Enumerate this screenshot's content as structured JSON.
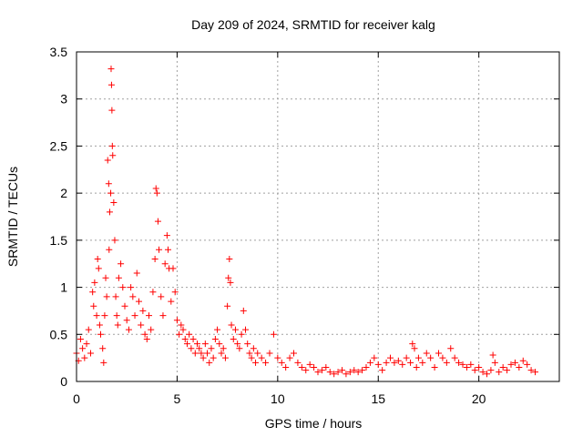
{
  "chart_data": {
    "type": "scatter",
    "title": "Day 209 of 2024, SRMTID for receiver kalg",
    "xlabel": "GPS time / hours",
    "ylabel": "SRMTID / TECUs",
    "xlim": [
      0,
      24
    ],
    "ylim": [
      0,
      3.5
    ],
    "xticks": [
      0,
      5,
      10,
      15,
      20
    ],
    "yticks": [
      0,
      0.5,
      1,
      1.5,
      2,
      2.5,
      3,
      3.5
    ],
    "ytick_labels": [
      "0",
      "0.5",
      "1",
      "1.5",
      "2",
      "2.5",
      "3",
      "3.5"
    ],
    "grid": true,
    "marker": "+",
    "color": "#ff0000",
    "series": [
      {
        "name": "SRMTID",
        "points": [
          [
            0.0,
            0.3
          ],
          [
            0.1,
            0.22
          ],
          [
            0.2,
            0.45
          ],
          [
            0.3,
            0.35
          ],
          [
            0.4,
            0.25
          ],
          [
            0.5,
            0.4
          ],
          [
            0.6,
            0.55
          ],
          [
            0.7,
            0.3
          ],
          [
            0.8,
            0.95
          ],
          [
            0.85,
            0.8
          ],
          [
            0.9,
            1.05
          ],
          [
            1.0,
            0.7
          ],
          [
            1.05,
            1.3
          ],
          [
            1.1,
            1.2
          ],
          [
            1.15,
            0.6
          ],
          [
            1.2,
            0.5
          ],
          [
            1.3,
            0.35
          ],
          [
            1.35,
            0.2
          ],
          [
            1.4,
            0.7
          ],
          [
            1.45,
            1.1
          ],
          [
            1.5,
            0.9
          ],
          [
            1.55,
            2.35
          ],
          [
            1.6,
            2.1
          ],
          [
            1.62,
            1.4
          ],
          [
            1.65,
            1.8
          ],
          [
            1.7,
            2.0
          ],
          [
            1.72,
            3.32
          ],
          [
            1.74,
            3.15
          ],
          [
            1.76,
            2.88
          ],
          [
            1.78,
            2.5
          ],
          [
            1.8,
            2.4
          ],
          [
            1.85,
            1.9
          ],
          [
            1.9,
            1.5
          ],
          [
            1.95,
            0.9
          ],
          [
            2.0,
            0.7
          ],
          [
            2.05,
            0.6
          ],
          [
            2.1,
            1.1
          ],
          [
            2.2,
            1.25
          ],
          [
            2.3,
            1.0
          ],
          [
            2.4,
            0.8
          ],
          [
            2.5,
            0.65
          ],
          [
            2.6,
            0.55
          ],
          [
            2.7,
            1.0
          ],
          [
            2.8,
            0.9
          ],
          [
            2.9,
            0.7
          ],
          [
            3.0,
            1.15
          ],
          [
            3.1,
            0.85
          ],
          [
            3.2,
            0.6
          ],
          [
            3.3,
            0.75
          ],
          [
            3.4,
            0.5
          ],
          [
            3.5,
            0.45
          ],
          [
            3.6,
            0.7
          ],
          [
            3.7,
            0.55
          ],
          [
            3.8,
            0.95
          ],
          [
            3.9,
            1.3
          ],
          [
            3.95,
            2.05
          ],
          [
            4.0,
            2.0
          ],
          [
            4.05,
            1.7
          ],
          [
            4.1,
            1.4
          ],
          [
            4.2,
            0.9
          ],
          [
            4.3,
            0.7
          ],
          [
            4.4,
            1.25
          ],
          [
            4.5,
            1.55
          ],
          [
            4.55,
            1.4
          ],
          [
            4.6,
            1.2
          ],
          [
            4.7,
            0.85
          ],
          [
            4.8,
            1.2
          ],
          [
            4.9,
            0.95
          ],
          [
            5.0,
            0.65
          ],
          [
            5.1,
            0.5
          ],
          [
            5.2,
            0.6
          ],
          [
            5.3,
            0.55
          ],
          [
            5.4,
            0.45
          ],
          [
            5.5,
            0.4
          ],
          [
            5.6,
            0.5
          ],
          [
            5.7,
            0.35
          ],
          [
            5.8,
            0.45
          ],
          [
            5.9,
            0.3
          ],
          [
            6.0,
            0.4
          ],
          [
            6.1,
            0.35
          ],
          [
            6.2,
            0.3
          ],
          [
            6.3,
            0.25
          ],
          [
            6.4,
            0.4
          ],
          [
            6.5,
            0.3
          ],
          [
            6.6,
            0.2
          ],
          [
            6.7,
            0.35
          ],
          [
            6.8,
            0.25
          ],
          [
            6.9,
            0.45
          ],
          [
            7.0,
            0.55
          ],
          [
            7.1,
            0.4
          ],
          [
            7.2,
            0.3
          ],
          [
            7.3,
            0.35
          ],
          [
            7.4,
            0.25
          ],
          [
            7.5,
            0.8
          ],
          [
            7.55,
            1.1
          ],
          [
            7.6,
            1.3
          ],
          [
            7.65,
            1.05
          ],
          [
            7.7,
            0.6
          ],
          [
            7.8,
            0.45
          ],
          [
            7.9,
            0.55
          ],
          [
            8.0,
            0.4
          ],
          [
            8.1,
            0.35
          ],
          [
            8.2,
            0.5
          ],
          [
            8.3,
            0.75
          ],
          [
            8.4,
            0.55
          ],
          [
            8.5,
            0.4
          ],
          [
            8.6,
            0.3
          ],
          [
            8.7,
            0.25
          ],
          [
            8.8,
            0.35
          ],
          [
            8.9,
            0.2
          ],
          [
            9.0,
            0.3
          ],
          [
            9.2,
            0.25
          ],
          [
            9.4,
            0.2
          ],
          [
            9.6,
            0.3
          ],
          [
            9.8,
            0.5
          ],
          [
            10.0,
            0.25
          ],
          [
            10.2,
            0.2
          ],
          [
            10.4,
            0.15
          ],
          [
            10.6,
            0.25
          ],
          [
            10.8,
            0.3
          ],
          [
            11.0,
            0.2
          ],
          [
            11.2,
            0.15
          ],
          [
            11.4,
            0.12
          ],
          [
            11.6,
            0.18
          ],
          [
            11.8,
            0.15
          ],
          [
            12.0,
            0.1
          ],
          [
            12.2,
            0.12
          ],
          [
            12.4,
            0.15
          ],
          [
            12.6,
            0.1
          ],
          [
            12.8,
            0.08
          ],
          [
            13.0,
            0.1
          ],
          [
            13.2,
            0.12
          ],
          [
            13.4,
            0.08
          ],
          [
            13.6,
            0.1
          ],
          [
            13.8,
            0.12
          ],
          [
            14.0,
            0.1
          ],
          [
            14.2,
            0.12
          ],
          [
            14.4,
            0.15
          ],
          [
            14.6,
            0.2
          ],
          [
            14.8,
            0.25
          ],
          [
            15.0,
            0.18
          ],
          [
            15.2,
            0.12
          ],
          [
            15.4,
            0.2
          ],
          [
            15.6,
            0.25
          ],
          [
            15.8,
            0.2
          ],
          [
            16.0,
            0.22
          ],
          [
            16.2,
            0.18
          ],
          [
            16.4,
            0.25
          ],
          [
            16.6,
            0.2
          ],
          [
            16.7,
            0.4
          ],
          [
            16.8,
            0.35
          ],
          [
            16.9,
            0.15
          ],
          [
            17.0,
            0.25
          ],
          [
            17.2,
            0.2
          ],
          [
            17.4,
            0.3
          ],
          [
            17.6,
            0.25
          ],
          [
            17.8,
            0.15
          ],
          [
            18.0,
            0.3
          ],
          [
            18.2,
            0.25
          ],
          [
            18.4,
            0.2
          ],
          [
            18.6,
            0.35
          ],
          [
            18.8,
            0.25
          ],
          [
            19.0,
            0.2
          ],
          [
            19.2,
            0.18
          ],
          [
            19.4,
            0.15
          ],
          [
            19.6,
            0.18
          ],
          [
            19.8,
            0.12
          ],
          [
            20.0,
            0.15
          ],
          [
            20.2,
            0.1
          ],
          [
            20.4,
            0.08
          ],
          [
            20.6,
            0.12
          ],
          [
            20.7,
            0.28
          ],
          [
            20.8,
            0.2
          ],
          [
            21.0,
            0.1
          ],
          [
            21.2,
            0.15
          ],
          [
            21.4,
            0.12
          ],
          [
            21.6,
            0.18
          ],
          [
            21.8,
            0.2
          ],
          [
            22.0,
            0.15
          ],
          [
            22.2,
            0.22
          ],
          [
            22.4,
            0.18
          ],
          [
            22.6,
            0.12
          ],
          [
            22.8,
            0.1
          ]
        ]
      }
    ]
  }
}
